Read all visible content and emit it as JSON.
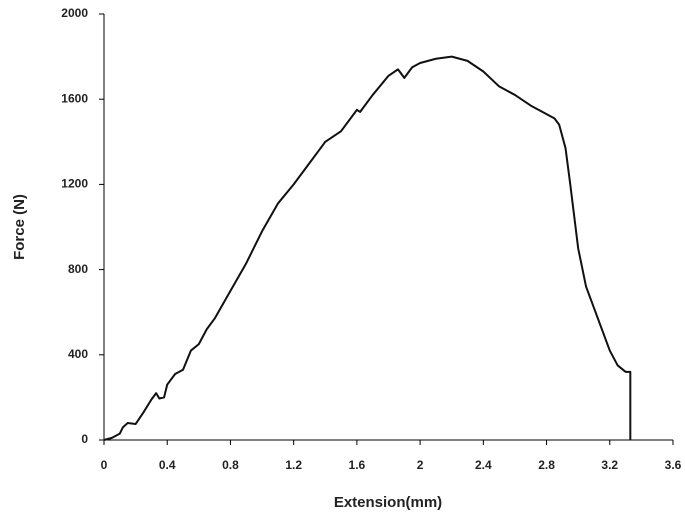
{
  "chart_data": {
    "type": "line",
    "x_label": "Extension(mm)",
    "y_label": "Force (N)",
    "x": [
      0,
      0.05,
      0.1,
      0.12,
      0.15,
      0.2,
      0.25,
      0.3,
      0.33,
      0.35,
      0.38,
      0.4,
      0.45,
      0.5,
      0.55,
      0.6,
      0.65,
      0.7,
      0.8,
      0.9,
      1.0,
      1.1,
      1.2,
      1.3,
      1.4,
      1.5,
      1.6,
      1.62,
      1.7,
      1.8,
      1.86,
      1.9,
      1.95,
      2.0,
      2.1,
      2.2,
      2.3,
      2.4,
      2.5,
      2.6,
      2.7,
      2.8,
      2.85,
      2.88,
      2.92,
      2.95,
      3.0,
      3.05,
      3.1,
      3.15,
      3.2,
      3.25,
      3.3,
      3.33,
      3.33
    ],
    "values": [
      0,
      10,
      30,
      60,
      80,
      75,
      130,
      190,
      220,
      195,
      200,
      260,
      310,
      330,
      420,
      450,
      520,
      570,
      700,
      830,
      980,
      1110,
      1200,
      1300,
      1400,
      1450,
      1550,
      1540,
      1620,
      1710,
      1740,
      1700,
      1750,
      1770,
      1790,
      1800,
      1780,
      1730,
      1660,
      1620,
      1570,
      1530,
      1510,
      1480,
      1370,
      1200,
      900,
      720,
      620,
      520,
      420,
      350,
      320,
      320,
      0
    ],
    "color": "#111111",
    "xlim": [
      0,
      3.6
    ],
    "xticks": [
      0,
      0.4,
      0.8,
      1.2,
      1.6,
      2,
      2.4,
      2.8,
      3.2,
      3.6
    ],
    "ylim": [
      0,
      2000
    ],
    "yticks": [
      0,
      400,
      800,
      1200,
      1600,
      2000
    ],
    "grid": false
  }
}
